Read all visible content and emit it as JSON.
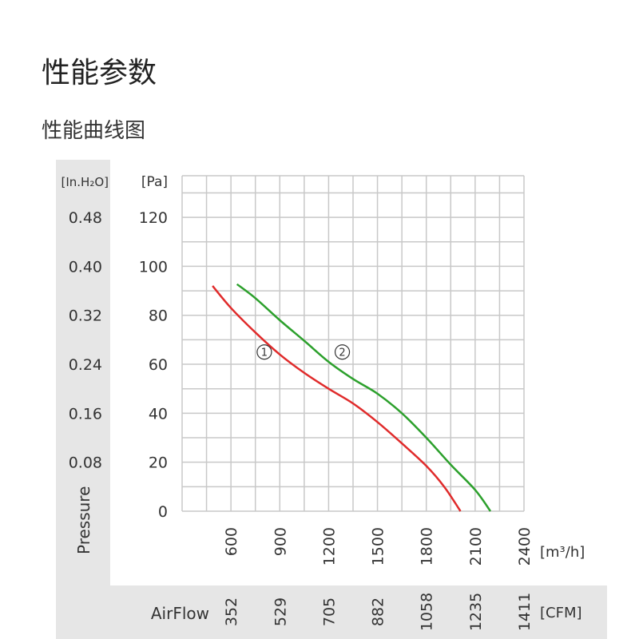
{
  "page": {
    "title": "性能参数",
    "subtitle": "性能曲线图"
  },
  "chart_data": {
    "type": "line",
    "xlabel": "[m³/h]",
    "ylabel": "Pressure",
    "y_unit_pa": "[Pa]",
    "y_unit_inh2o": "[In.H₂O]",
    "secondary_x_label": "AirFlow",
    "secondary_x_unit": "[CFM]",
    "xlim": [
      300,
      2400
    ],
    "ylim": [
      0,
      137
    ],
    "grid": true,
    "x_ticks": [
      "600",
      "900",
      "1200",
      "1500",
      "1800",
      "2100",
      "2400"
    ],
    "x_ticks_cfm": [
      "352",
      "529",
      "705",
      "882",
      "1058",
      "1235",
      "1411"
    ],
    "y_ticks": [
      "0",
      "20",
      "40",
      "60",
      "80",
      "100",
      "120"
    ],
    "y_ticks_inh2o": [
      "",
      "0.08",
      "0.16",
      "0.24",
      "0.32",
      "0.40",
      "0.48"
    ],
    "series": [
      {
        "name": "①",
        "color": "#e02b2b",
        "x": [
          487,
          600,
          750,
          900,
          1050,
          1200,
          1350,
          1500,
          1650,
          1800,
          1912,
          2010
        ],
        "y": [
          92,
          83,
          73,
          64,
          56.5,
          50,
          44,
          36.4,
          27.7,
          18.5,
          9.8,
          0
        ],
        "label_at": [
          805,
          65
        ]
      },
      {
        "name": "②",
        "color": "#2ca02c",
        "x": [
          637,
          750,
          900,
          1050,
          1200,
          1350,
          1500,
          1650,
          1800,
          1950,
          2100,
          2194
        ],
        "y": [
          92.7,
          87,
          78,
          69.6,
          61,
          54,
          48,
          40,
          30,
          19,
          8.7,
          0
        ],
        "label_at": [
          1284,
          65
        ]
      }
    ]
  }
}
